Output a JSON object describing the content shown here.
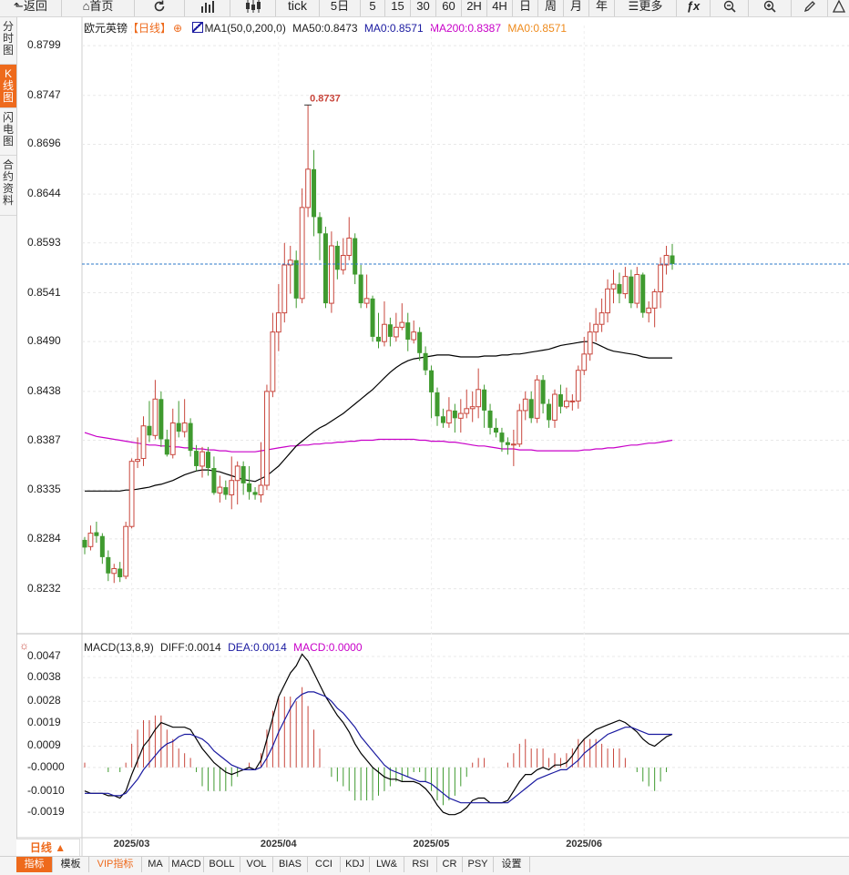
{
  "toolbar": {
    "back_label": "返回",
    "home_label": "首页",
    "tick_label": "tick",
    "five_day_label": "5日",
    "minute_buttons": [
      "5",
      "15",
      "30",
      "60"
    ],
    "hour_buttons": [
      "2H",
      "4H"
    ],
    "period_buttons": [
      "日",
      "周",
      "月",
      "年"
    ],
    "more_label": "更多"
  },
  "sidebar": {
    "tabs": [
      "分\n时\n图",
      "K\n线\n图",
      "闪\n电\n图",
      "合\n约\n资\n料"
    ]
  },
  "legend": {
    "symbol": "欧元英镑",
    "period": "【日线】",
    "ma_param": "MA1(50,0,200,0)",
    "ma50": "MA50:0.8473",
    "ma0a": "MA0:0.8571",
    "ma200": "MA200:0.8387",
    "ma0b": "MA0:0.8571"
  },
  "macd_legend": {
    "param": "MACD(13,8,9)",
    "diff": "DIFF:0.0014",
    "dea": "DEA:0.0014",
    "macd": "MACD:0.0000"
  },
  "period_selector": "日线 ▲",
  "bottom_tabs": [
    "指标",
    "模板",
    "VIP指标",
    "MA",
    "MACD",
    "BOLL",
    "VOL",
    "BIAS",
    "CCI",
    "KDJ",
    "LW&",
    "RSI",
    "CR",
    "PSY",
    "设置"
  ],
  "colors": {
    "up": "#c8463c",
    "down": "#3f9a2f",
    "ma50": "#000000",
    "ma200": "#c800c8",
    "dea": "#1a1aa0",
    "macd_label": "#c800c8",
    "ma0_label": "#ee8a1c",
    "accent": "#ee6a1c"
  },
  "chart_data": [
    {
      "type": "candlestick",
      "title": "欧元英镑 日线",
      "y_ticks": [
        "0.8799",
        "0.8747",
        "0.8696",
        "0.8644",
        "0.8593",
        "0.8541",
        "0.8490",
        "0.8438",
        "0.8387",
        "0.8335",
        "0.8284",
        "0.8232"
      ],
      "ylim": [
        0.8205,
        0.882
      ],
      "x_ticks": [
        {
          "label": "2025/03",
          "index": 8
        },
        {
          "label": "2025/04",
          "index": 33
        },
        {
          "label": "2025/05",
          "index": 59
        },
        {
          "label": "2025/06",
          "index": 85
        }
      ],
      "max_label": "0.8737",
      "last_price": 0.8571,
      "candles": [
        [
          0.8283,
          0.8275,
          0.8286,
          0.8268
        ],
        [
          0.8276,
          0.829,
          0.8298,
          0.8272
        ],
        [
          0.8291,
          0.8287,
          0.8302,
          0.828
        ],
        [
          0.8287,
          0.8265,
          0.829,
          0.8258
        ],
        [
          0.8265,
          0.8248,
          0.8272,
          0.824
        ],
        [
          0.8248,
          0.8253,
          0.8258,
          0.8238
        ],
        [
          0.8253,
          0.8244,
          0.826,
          0.8239
        ],
        [
          0.8245,
          0.8297,
          0.8302,
          0.8242
        ],
        [
          0.8297,
          0.8365,
          0.8368,
          0.8295
        ],
        [
          0.8365,
          0.8367,
          0.839,
          0.8358
        ],
        [
          0.8368,
          0.8402,
          0.8412,
          0.836
        ],
        [
          0.8402,
          0.8392,
          0.8428,
          0.8385
        ],
        [
          0.8392,
          0.843,
          0.845,
          0.8388
        ],
        [
          0.843,
          0.8388,
          0.8438,
          0.838
        ],
        [
          0.8388,
          0.8372,
          0.8398,
          0.837
        ],
        [
          0.8372,
          0.8405,
          0.842,
          0.8368
        ],
        [
          0.8405,
          0.8396,
          0.8428,
          0.839
        ],
        [
          0.8396,
          0.8405,
          0.843,
          0.839
        ],
        [
          0.8405,
          0.8376,
          0.841,
          0.837
        ],
        [
          0.8376,
          0.836,
          0.8382,
          0.8355
        ],
        [
          0.836,
          0.8375,
          0.838,
          0.8348
        ],
        [
          0.8375,
          0.8358,
          0.838,
          0.835
        ],
        [
          0.8358,
          0.8332,
          0.837,
          0.833
        ],
        [
          0.8332,
          0.8338,
          0.835,
          0.8322
        ],
        [
          0.8338,
          0.833,
          0.8345,
          0.8325
        ],
        [
          0.833,
          0.8345,
          0.837,
          0.8315
        ],
        [
          0.8345,
          0.836,
          0.8365,
          0.832
        ],
        [
          0.836,
          0.8342,
          0.8365,
          0.833
        ],
        [
          0.8342,
          0.8333,
          0.836,
          0.8325
        ],
        [
          0.8333,
          0.833,
          0.8338,
          0.8325
        ],
        [
          0.833,
          0.834,
          0.8385,
          0.8322
        ],
        [
          0.834,
          0.8438,
          0.8445,
          0.8335
        ],
        [
          0.8438,
          0.85,
          0.852,
          0.8432
        ],
        [
          0.85,
          0.852,
          0.855,
          0.848
        ],
        [
          0.852,
          0.857,
          0.8593,
          0.851
        ],
        [
          0.857,
          0.8575,
          0.859,
          0.854
        ],
        [
          0.8575,
          0.8535,
          0.8585,
          0.8525
        ],
        [
          0.8535,
          0.863,
          0.865,
          0.853
        ],
        [
          0.863,
          0.867,
          0.8737,
          0.862
        ],
        [
          0.867,
          0.862,
          0.869,
          0.86
        ],
        [
          0.862,
          0.8603,
          0.8625,
          0.8575
        ],
        [
          0.8603,
          0.853,
          0.861,
          0.8525
        ],
        [
          0.853,
          0.859,
          0.8605,
          0.852
        ],
        [
          0.859,
          0.8565,
          0.8595,
          0.8555
        ],
        [
          0.8565,
          0.858,
          0.8598,
          0.856
        ],
        [
          0.858,
          0.8598,
          0.862,
          0.8575
        ],
        [
          0.8598,
          0.856,
          0.8603,
          0.855
        ],
        [
          0.856,
          0.853,
          0.857,
          0.8525
        ],
        [
          0.853,
          0.8535,
          0.856,
          0.8525
        ],
        [
          0.8535,
          0.8495,
          0.8538,
          0.849
        ],
        [
          0.8495,
          0.849,
          0.852,
          0.8483
        ],
        [
          0.849,
          0.8508,
          0.8532,
          0.8485
        ],
        [
          0.8508,
          0.8495,
          0.8515,
          0.8485
        ],
        [
          0.8495,
          0.8505,
          0.852,
          0.849
        ],
        [
          0.8505,
          0.851,
          0.853,
          0.8502
        ],
        [
          0.851,
          0.8492,
          0.852,
          0.848
        ],
        [
          0.8492,
          0.85,
          0.8512,
          0.8488
        ],
        [
          0.85,
          0.8478,
          0.8505,
          0.847
        ],
        [
          0.8478,
          0.846,
          0.8485,
          0.8455
        ],
        [
          0.846,
          0.8437,
          0.8465,
          0.841
        ],
        [
          0.8437,
          0.8412,
          0.8442,
          0.8402
        ],
        [
          0.8412,
          0.8405,
          0.842,
          0.84
        ],
        [
          0.8405,
          0.8418,
          0.8432,
          0.84
        ],
        [
          0.8418,
          0.841,
          0.8425,
          0.8395
        ],
        [
          0.841,
          0.8415,
          0.843,
          0.8395
        ],
        [
          0.8415,
          0.842,
          0.844,
          0.841
        ],
        [
          0.842,
          0.8422,
          0.8438,
          0.8406
        ],
        [
          0.8422,
          0.844,
          0.8462,
          0.841
        ],
        [
          0.844,
          0.8418,
          0.8445,
          0.84
        ],
        [
          0.8418,
          0.84,
          0.8425,
          0.8393
        ],
        [
          0.84,
          0.8395,
          0.841,
          0.839
        ],
        [
          0.8395,
          0.8385,
          0.84,
          0.8375
        ],
        [
          0.8385,
          0.8382,
          0.839,
          0.8372
        ],
        [
          0.8382,
          0.8383,
          0.8398,
          0.836
        ],
        [
          0.8383,
          0.8418,
          0.8425,
          0.838
        ],
        [
          0.8418,
          0.843,
          0.8438,
          0.8408
        ],
        [
          0.843,
          0.841,
          0.8438,
          0.8405
        ],
        [
          0.841,
          0.845,
          0.8455,
          0.8405
        ],
        [
          0.845,
          0.8425,
          0.8455,
          0.8415
        ],
        [
          0.8425,
          0.8408,
          0.843,
          0.84
        ],
        [
          0.8408,
          0.8435,
          0.844,
          0.84
        ],
        [
          0.8435,
          0.8422,
          0.8445,
          0.8415
        ],
        [
          0.8422,
          0.8428,
          0.8442,
          0.842
        ],
        [
          0.8428,
          0.8428,
          0.8435,
          0.8418
        ],
        [
          0.8428,
          0.846,
          0.8465,
          0.842
        ],
        [
          0.846,
          0.8477,
          0.8495,
          0.8455
        ],
        [
          0.8477,
          0.85,
          0.851,
          0.847
        ],
        [
          0.85,
          0.8508,
          0.8525,
          0.849
        ],
        [
          0.8508,
          0.852,
          0.8535,
          0.85
        ],
        [
          0.852,
          0.8545,
          0.8555,
          0.851
        ],
        [
          0.8545,
          0.855,
          0.8565,
          0.853
        ],
        [
          0.855,
          0.854,
          0.8562,
          0.853
        ],
        [
          0.854,
          0.8558,
          0.8568,
          0.8535
        ],
        [
          0.8558,
          0.853,
          0.8565,
          0.8525
        ],
        [
          0.853,
          0.856,
          0.8568,
          0.8525
        ],
        [
          0.856,
          0.852,
          0.8562,
          0.8515
        ],
        [
          0.852,
          0.8525,
          0.8532,
          0.851
        ],
        [
          0.8525,
          0.8542,
          0.8545,
          0.8505
        ],
        [
          0.8542,
          0.857,
          0.8578,
          0.8525
        ],
        [
          0.857,
          0.858,
          0.859,
          0.856
        ],
        [
          0.858,
          0.8571,
          0.8592,
          0.8565
        ]
      ],
      "ma50": [
        0.8334,
        0.8334,
        0.8334,
        0.8334,
        0.8334,
        0.8334,
        0.8334,
        0.8335,
        0.8335,
        0.8336,
        0.8337,
        0.8338,
        0.834,
        0.8341,
        0.8343,
        0.8345,
        0.8348,
        0.8351,
        0.8353,
        0.8355,
        0.8356,
        0.8356,
        0.8355,
        0.8354,
        0.8352,
        0.835,
        0.8348,
        0.8346,
        0.8345,
        0.8344,
        0.8347,
        0.835,
        0.8355,
        0.836,
        0.8367,
        0.8374,
        0.8381,
        0.8386,
        0.8391,
        0.8396,
        0.84,
        0.8403,
        0.8407,
        0.8411,
        0.8415,
        0.842,
        0.8425,
        0.843,
        0.8435,
        0.844,
        0.8446,
        0.8452,
        0.8458,
        0.8463,
        0.8467,
        0.847,
        0.8472,
        0.8473,
        0.8474,
        0.8475,
        0.8476,
        0.8476,
        0.8476,
        0.8475,
        0.8474,
        0.8474,
        0.8474,
        0.8474,
        0.8475,
        0.8475,
        0.8475,
        0.8476,
        0.8476,
        0.8477,
        0.8477,
        0.8478,
        0.8479,
        0.848,
        0.8481,
        0.8482,
        0.8484,
        0.8486,
        0.8487,
        0.8488,
        0.8489,
        0.849,
        0.849,
        0.8488,
        0.8485,
        0.8482,
        0.848,
        0.8479,
        0.8478,
        0.8477,
        0.8476,
        0.8474,
        0.8473,
        0.8473,
        0.8473,
        0.8473,
        0.8473
      ],
      "ma200": [
        0.8395,
        0.8393,
        0.8391,
        0.839,
        0.8389,
        0.8388,
        0.8387,
        0.8386,
        0.8385,
        0.8384,
        0.8383,
        0.8382,
        0.8382,
        0.8381,
        0.8381,
        0.838,
        0.838,
        0.8379,
        0.8379,
        0.8378,
        0.8378,
        0.8377,
        0.8377,
        0.8376,
        0.8376,
        0.8375,
        0.8375,
        0.8375,
        0.8375,
        0.8375,
        0.8376,
        0.8377,
        0.8378,
        0.8379,
        0.838,
        0.8381,
        0.8381,
        0.8382,
        0.8382,
        0.8383,
        0.8383,
        0.8384,
        0.8384,
        0.8385,
        0.8385,
        0.8386,
        0.8386,
        0.8387,
        0.8387,
        0.8387,
        0.8388,
        0.8388,
        0.8388,
        0.8388,
        0.8388,
        0.8388,
        0.8388,
        0.8387,
        0.8387,
        0.8386,
        0.8386,
        0.8386,
        0.8385,
        0.8385,
        0.8384,
        0.8383,
        0.8382,
        0.8381,
        0.8381,
        0.838,
        0.8379,
        0.8378,
        0.8378,
        0.8378,
        0.8377,
        0.8377,
        0.8377,
        0.8376,
        0.8376,
        0.8376,
        0.8376,
        0.8376,
        0.8376,
        0.8376,
        0.8376,
        0.8377,
        0.8377,
        0.8378,
        0.8378,
        0.8379,
        0.8379,
        0.838,
        0.8381,
        0.8382,
        0.8382,
        0.8383,
        0.8384,
        0.8384,
        0.8385,
        0.8386,
        0.8387
      ]
    },
    {
      "type": "macd",
      "title": "MACD(13,8,9)",
      "y_ticks": [
        "0.0047",
        "0.0038",
        "0.0028",
        "0.0019",
        "0.0009",
        "-0.0000",
        "-0.0010",
        "-0.0019"
      ],
      "ylim": [
        -0.0029,
        0.0052
      ],
      "diff": [
        -0.001,
        -0.0011,
        -0.0011,
        -0.0011,
        -0.0012,
        -0.0012,
        -0.0013,
        -0.001,
        -0.0003,
        0.0003,
        0.0009,
        0.0012,
        0.0016,
        0.0019,
        0.0018,
        0.0017,
        0.0017,
        0.0017,
        0.0016,
        0.0012,
        0.0008,
        0.0005,
        0.0002,
        0.0,
        -0.0002,
        -0.0003,
        -0.0002,
        -0.0001,
        0.0,
        -0.0001,
        0.0003,
        0.0012,
        0.0021,
        0.003,
        0.0035,
        0.004,
        0.0043,
        0.0048,
        0.0045,
        0.004,
        0.0035,
        0.003,
        0.0026,
        0.0022,
        0.0019,
        0.0015,
        0.001,
        0.0006,
        0.0003,
        0.0,
        -0.0002,
        -0.0004,
        -0.0005,
        -0.0005,
        -0.0006,
        -0.0006,
        -0.0006,
        -0.0007,
        -0.0009,
        -0.0012,
        -0.0016,
        -0.0019,
        -0.002,
        -0.002,
        -0.0019,
        -0.0017,
        -0.0014,
        -0.0013,
        -0.0013,
        -0.0015,
        -0.0015,
        -0.0015,
        -0.0014,
        -0.001,
        -0.0006,
        -0.0003,
        -0.0003,
        -0.0001,
        0.0,
        -0.0001,
        0.0001,
        0.0001,
        0.0002,
        0.0005,
        0.0009,
        0.0012,
        0.0014,
        0.0016,
        0.0017,
        0.0018,
        0.0019,
        0.002,
        0.0019,
        0.0017,
        0.0015,
        0.0012,
        0.001,
        0.0009,
        0.0011,
        0.0013,
        0.0014
      ],
      "dea": [
        -0.0011,
        -0.0011,
        -0.0011,
        -0.0011,
        -0.0011,
        -0.0012,
        -0.0012,
        -0.0011,
        -0.0008,
        -0.0005,
        -0.0001,
        0.0002,
        0.0005,
        0.0008,
        0.001,
        0.0011,
        0.0013,
        0.0014,
        0.0014,
        0.0013,
        0.0012,
        0.001,
        0.0007,
        0.0005,
        0.0003,
        0.0001,
        0.0,
        -0.0001,
        -0.0001,
        -0.0001,
        0.0,
        0.0004,
        0.0009,
        0.0015,
        0.002,
        0.0025,
        0.0029,
        0.0031,
        0.0032,
        0.0032,
        0.0031,
        0.003,
        0.0028,
        0.0025,
        0.0023,
        0.002,
        0.0017,
        0.0013,
        0.001,
        0.0007,
        0.0004,
        0.0001,
        -0.0001,
        -0.0002,
        -0.0003,
        -0.0004,
        -0.0005,
        -0.0006,
        -0.0006,
        -0.0007,
        -0.0009,
        -0.0011,
        -0.0013,
        -0.0014,
        -0.0015,
        -0.0015,
        -0.0015,
        -0.0015,
        -0.0015,
        -0.0015,
        -0.0015,
        -0.0015,
        -0.0015,
        -0.0013,
        -0.0011,
        -0.0009,
        -0.0007,
        -0.0005,
        -0.0004,
        -0.0003,
        -0.0002,
        -0.0001,
        -0.0001,
        0.0001,
        0.0003,
        0.0006,
        0.0008,
        0.001,
        0.0012,
        0.0014,
        0.0015,
        0.0016,
        0.0017,
        0.0017,
        0.0016,
        0.0015,
        0.0014,
        0.0014,
        0.0014,
        0.0014,
        0.0014
      ]
    }
  ]
}
